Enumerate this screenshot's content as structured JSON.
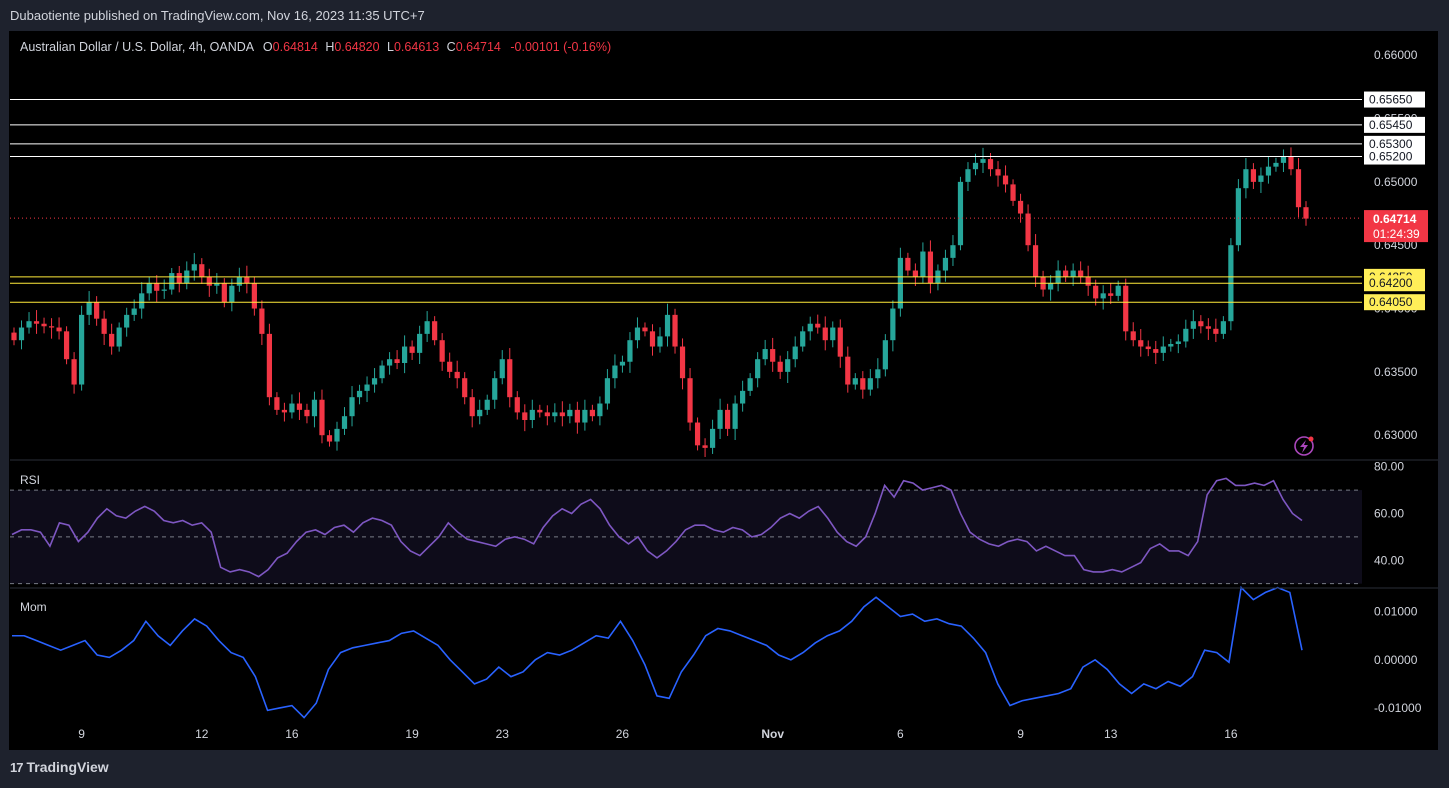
{
  "header": {
    "published": "Dubaotiente published on TradingView.com, Nov 16, 2023 11:35 UTC+7"
  },
  "legend": {
    "symbol": "Australian Dollar / U.S. Dollar, 4h, OANDA",
    "o_label": "O",
    "o_value": "0.64814",
    "h_label": "H",
    "h_value": "0.64820",
    "l_label": "L",
    "l_value": "0.64613",
    "c_label": "C",
    "c_value": "0.64714",
    "change": "-0.00101 (-0.16%)"
  },
  "price_tag": {
    "value": "0.64714",
    "countdown": "01:24:39"
  },
  "footer": {
    "brand": "TradingView"
  },
  "colors": {
    "up": "#26a69a",
    "down": "#f23645",
    "rsi": "#7e57c2",
    "mom": "#2962ff",
    "resistance": "#ffffff",
    "support": "#ffeb3b",
    "support_tag": "#ffee58"
  },
  "chart_data": [
    {
      "type": "candlestick",
      "title": "Australian Dollar / U.S. Dollar, 4h, OANDA",
      "ylim": [
        0.6282,
        0.6612
      ],
      "y_ticks": [
        "0.66000",
        "0.65500",
        "0.65000",
        "0.64500",
        "0.64000",
        "0.63500",
        "0.63000"
      ],
      "y_tick_values": [
        0.66,
        0.655,
        0.65,
        0.645,
        0.64,
        0.635,
        0.63
      ],
      "x_ticks": [
        "9",
        "12",
        "16",
        "19",
        "23",
        "26",
        "Nov",
        "6",
        "9",
        "13",
        "16"
      ],
      "x_tick_bar_index": [
        9,
        25,
        37,
        53,
        65,
        81,
        101,
        118,
        134,
        146,
        162
      ],
      "resistance_levels": [
        0.6565,
        0.6545,
        0.653,
        0.652
      ],
      "resistance_labels": [
        "0.65650",
        "0.65450",
        "0.65300",
        "0.65200"
      ],
      "support_levels": [
        0.6425,
        0.642,
        0.6405
      ],
      "support_labels": [
        "0.64250",
        "0.64200",
        "0.64050"
      ],
      "last_price": 0.64714,
      "close": [
        0.6375,
        0.6385,
        0.639,
        0.6388,
        0.6386,
        0.6385,
        0.6382,
        0.636,
        0.634,
        0.6395,
        0.6405,
        0.6392,
        0.638,
        0.637,
        0.6385,
        0.6395,
        0.64,
        0.6412,
        0.642,
        0.6414,
        0.6415,
        0.6428,
        0.642,
        0.643,
        0.6435,
        0.6425,
        0.6418,
        0.642,
        0.6405,
        0.6418,
        0.6425,
        0.642,
        0.64,
        0.638,
        0.633,
        0.632,
        0.6318,
        0.6325,
        0.632,
        0.6315,
        0.6328,
        0.63,
        0.6295,
        0.6305,
        0.6315,
        0.633,
        0.6335,
        0.634,
        0.6345,
        0.6355,
        0.636,
        0.6357,
        0.637,
        0.6365,
        0.638,
        0.639,
        0.6375,
        0.6358,
        0.635,
        0.6345,
        0.633,
        0.6315,
        0.632,
        0.6328,
        0.6345,
        0.636,
        0.633,
        0.6318,
        0.6312,
        0.632,
        0.6318,
        0.6315,
        0.6318,
        0.6315,
        0.632,
        0.631,
        0.632,
        0.6315,
        0.6325,
        0.6345,
        0.6355,
        0.6358,
        0.6375,
        0.6385,
        0.6382,
        0.637,
        0.6378,
        0.6395,
        0.637,
        0.6345,
        0.631,
        0.6292,
        0.629,
        0.6305,
        0.632,
        0.6305,
        0.6325,
        0.6335,
        0.6345,
        0.636,
        0.6368,
        0.6358,
        0.635,
        0.636,
        0.637,
        0.6382,
        0.6388,
        0.6385,
        0.6375,
        0.6385,
        0.6362,
        0.634,
        0.6345,
        0.6336,
        0.6345,
        0.6352,
        0.6375,
        0.64,
        0.644,
        0.643,
        0.6425,
        0.6445,
        0.642,
        0.643,
        0.644,
        0.645,
        0.65,
        0.651,
        0.6515,
        0.6518,
        0.651,
        0.6505,
        0.6498,
        0.6485,
        0.6475,
        0.645,
        0.6425,
        0.6415,
        0.642,
        0.643,
        0.6425,
        0.643,
        0.6425,
        0.6418,
        0.6408,
        0.6412,
        0.641,
        0.6418,
        0.6382,
        0.6375,
        0.637,
        0.6368,
        0.6365,
        0.637,
        0.6372,
        0.6374,
        0.6384,
        0.639,
        0.6386,
        0.6384,
        0.638,
        0.639,
        0.645,
        0.6495,
        0.651,
        0.65,
        0.6505,
        0.6512,
        0.6515,
        0.652,
        0.651,
        0.648,
        0.6471
      ]
    },
    {
      "type": "line",
      "title": "RSI",
      "ylim": [
        29,
        82
      ],
      "y_ticks": [
        "80.00",
        "60.00",
        "40.00"
      ],
      "y_tick_values": [
        80,
        60,
        40
      ],
      "band": [
        30,
        70
      ],
      "midline": 50,
      "values": [
        51,
        53,
        53,
        52,
        46,
        56,
        55,
        48,
        52,
        58,
        62,
        59,
        58,
        61,
        63,
        61,
        57,
        56,
        57,
        55,
        56,
        52,
        37,
        35,
        36,
        35,
        33,
        36,
        41,
        43,
        48,
        52,
        53,
        51,
        54,
        55,
        52,
        56,
        58,
        57,
        55,
        48,
        44,
        42,
        46,
        50,
        56,
        52,
        49,
        48,
        47,
        46,
        49,
        50,
        49,
        47,
        54,
        59,
        62,
        60,
        64,
        66,
        62,
        55,
        50,
        47,
        50,
        44,
        41,
        44,
        48,
        53,
        55,
        55,
        53,
        52,
        54,
        53,
        50,
        51,
        54,
        58,
        60,
        58,
        61,
        63,
        58,
        52,
        48,
        46,
        50,
        60,
        72,
        67,
        74,
        73,
        70,
        71,
        72,
        70,
        60,
        52,
        49,
        47,
        46,
        48,
        49,
        48,
        44,
        46,
        44,
        42,
        42,
        36,
        35,
        35,
        36,
        35,
        37,
        39,
        45,
        47,
        44,
        44,
        42,
        48,
        68,
        74,
        75,
        72,
        72,
        73,
        72,
        74,
        66,
        60,
        57
      ]
    },
    {
      "type": "line",
      "title": "Mom",
      "ylim": [
        -0.0125,
        0.0145
      ],
      "y_ticks": [
        "0.01000",
        "0.00000",
        "-0.01000"
      ],
      "y_tick_values": [
        0.01,
        0.0,
        -0.01
      ],
      "values": [
        0.005,
        0.005,
        0.004,
        0.003,
        0.002,
        0.003,
        0.004,
        0.001,
        0.0005,
        0.002,
        0.004,
        0.008,
        0.005,
        0.003,
        0.006,
        0.0085,
        0.007,
        0.004,
        0.0015,
        0.0005,
        -0.0035,
        -0.0105,
        -0.01,
        -0.0095,
        -0.012,
        -0.009,
        -0.002,
        0.0015,
        0.0025,
        0.003,
        0.0035,
        0.004,
        0.0055,
        0.006,
        0.0045,
        0.003,
        0.0,
        -0.0025,
        -0.005,
        -0.004,
        -0.0015,
        -0.0035,
        -0.0025,
        0.0,
        0.0015,
        0.001,
        0.002,
        0.0035,
        0.005,
        0.0045,
        0.008,
        0.004,
        -0.001,
        -0.0075,
        -0.008,
        -0.0025,
        0.001,
        0.005,
        0.0065,
        0.006,
        0.005,
        0.004,
        0.003,
        0.001,
        0.0,
        0.0015,
        0.0035,
        0.005,
        0.006,
        0.008,
        0.011,
        0.013,
        0.011,
        0.009,
        0.0095,
        0.008,
        0.0085,
        0.0075,
        0.007,
        0.0045,
        0.0015,
        -0.005,
        -0.0095,
        -0.0085,
        -0.008,
        -0.0075,
        -0.007,
        -0.006,
        -0.0015,
        0.0,
        -0.002,
        -0.005,
        -0.007,
        -0.005,
        -0.006,
        -0.0045,
        -0.0055,
        -0.0035,
        0.002,
        0.0015,
        -0.0005,
        0.015,
        0.0125,
        0.014,
        0.015,
        0.014,
        0.002
      ]
    }
  ]
}
